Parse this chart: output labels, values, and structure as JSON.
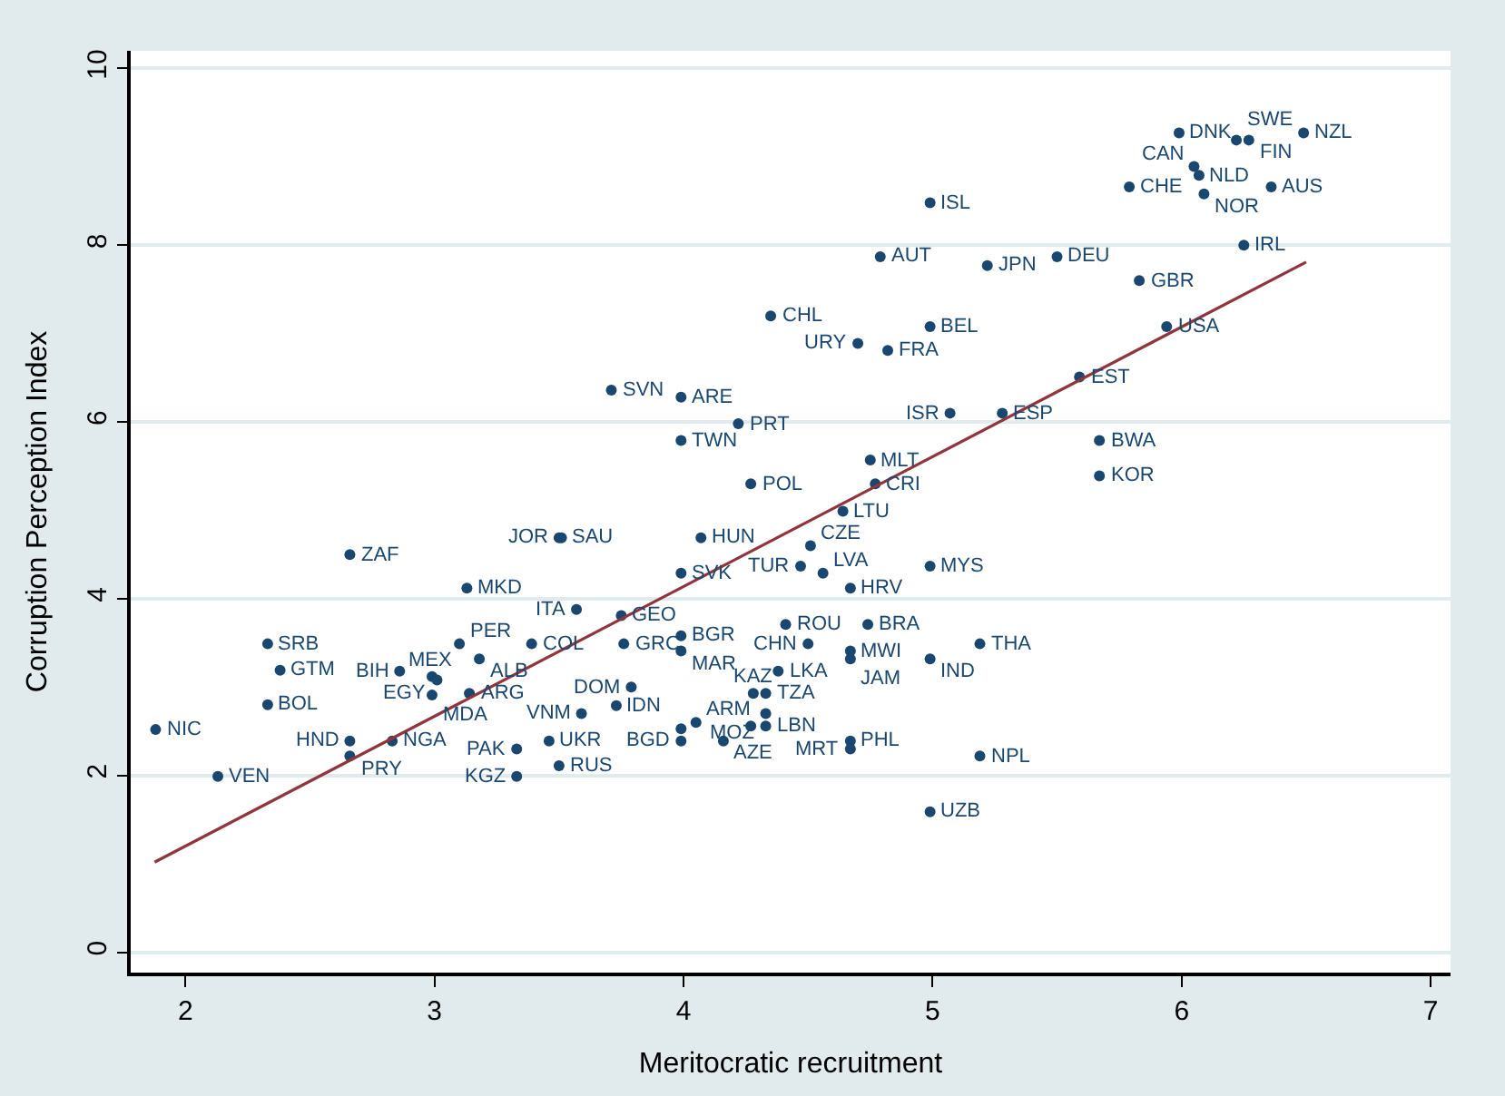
{
  "chart_data": {
    "type": "scatter",
    "xlabel": "Meritocratic recruitment",
    "ylabel": "Corruption Perception Index",
    "xlim": [
      1.78,
      7.08
    ],
    "ylim": [
      -0.23,
      10.2
    ],
    "xticks": [
      2,
      3,
      4,
      5,
      6,
      7
    ],
    "yticks": [
      0,
      2,
      4,
      6,
      8,
      10
    ],
    "grid": "y",
    "marker": "circle",
    "series": [
      {
        "color": "#1a476f",
        "x": [
          1.88,
          2.13,
          2.33,
          2.38,
          2.33,
          2.66,
          2.66,
          2.66,
          2.83,
          2.86,
          2.99,
          3.01,
          2.99,
          3.14,
          3.1,
          3.18,
          3.39,
          3.13,
          3.5,
          3.51,
          3.57,
          3.75,
          3.76,
          3.33,
          3.46,
          3.5,
          3.33,
          3.59,
          3.73,
          3.79,
          3.71,
          3.99,
          3.99,
          4.22,
          4.27,
          4.07,
          3.99,
          3.99,
          3.99,
          4.05,
          3.99,
          3.99,
          4.16,
          4.27,
          4.33,
          4.28,
          4.33,
          4.33,
          4.38,
          4.41,
          4.5,
          4.74,
          4.67,
          4.67,
          4.67,
          4.67,
          4.99,
          5.19,
          5.19,
          4.99,
          4.99,
          4.67,
          4.56,
          4.47,
          4.51,
          4.64,
          4.77,
          4.75,
          4.35,
          4.7,
          4.82,
          4.99,
          4.79,
          4.99,
          5.22,
          5.5,
          5.07,
          5.28,
          5.59,
          5.94,
          5.83,
          6.25,
          5.67,
          5.67,
          5.79,
          5.99,
          6.05,
          6.07,
          6.09,
          6.36,
          6.49,
          6.22,
          6.27
        ],
        "values": [
          2.52,
          1.99,
          3.49,
          3.19,
          2.8,
          4.5,
          2.39,
          2.22,
          2.39,
          3.18,
          3.12,
          3.08,
          2.91,
          2.93,
          3.49,
          3.32,
          3.49,
          4.12,
          4.69,
          4.69,
          3.88,
          3.81,
          3.49,
          2.3,
          2.39,
          2.11,
          1.99,
          2.7,
          2.79,
          3.0,
          6.36,
          6.28,
          5.79,
          5.98,
          5.3,
          4.69,
          4.29,
          3.58,
          3.41,
          2.6,
          2.39,
          2.53,
          2.39,
          2.56,
          2.56,
          2.93,
          2.93,
          2.7,
          3.18,
          3.71,
          3.49,
          3.71,
          3.41,
          3.32,
          2.39,
          2.3,
          3.32,
          3.49,
          2.22,
          1.59,
          4.37,
          4.12,
          4.29,
          4.37,
          4.6,
          4.99,
          5.3,
          5.57,
          7.2,
          6.89,
          6.81,
          7.08,
          7.87,
          8.48,
          7.77,
          7.87,
          6.1,
          6.1,
          6.51,
          7.08,
          7.6,
          8.0,
          5.79,
          5.39,
          8.66,
          9.27,
          8.89,
          8.79,
          8.58,
          8.66,
          9.27,
          9.19,
          9.19
        ],
        "value_labels": [
          "NIC",
          "VEN",
          "SRB",
          "GTM",
          "BOL",
          "ZAF",
          "HND",
          "PRY",
          "NGA",
          "BIH",
          "MEX",
          "EGY",
          "MDA",
          "ARG",
          "PER",
          "ALB",
          "COL",
          "MKD",
          "JOR",
          "SAU",
          "ITA",
          "GEO",
          "GRC",
          "PAK",
          "UKR",
          "RUS",
          "KGZ",
          "VNM",
          "IDN",
          "DOM",
          "SVN",
          "ARE",
          "TWN",
          "PRT",
          "POL",
          "HUN",
          "SVK",
          "BGR",
          "MAR",
          "ARM",
          "BGD",
          null,
          "AZE",
          null,
          "LBN",
          "KAZ",
          "TZA",
          "MOZ",
          "LKA",
          "ROU",
          "CHN",
          "BRA",
          "MWI",
          "JAM",
          "PHL",
          "MRT",
          "IND",
          "THA",
          "NPL",
          "UZB",
          "MYS",
          "HRV",
          "LVA",
          "TUR",
          "CZE",
          "LTU",
          "CRI",
          "MLT",
          "CHL",
          "URY",
          "FRA",
          "BEL",
          "AUT",
          "ISL",
          "JPN",
          "DEU",
          "ISR",
          "ESP",
          "EST",
          "USA",
          "GBR",
          "IRL",
          "BWA",
          "KOR",
          "CHE",
          "DNK",
          "CAN",
          "NLD",
          "NOR",
          "AUS",
          "NZL",
          "SWE",
          "FIN"
        ]
      },
      {
        "type": "line",
        "color": "#90353b",
        "x": [
          1.876,
          6.5
        ],
        "values": [
          1.02,
          7.81
        ],
        "marker": "none"
      }
    ]
  }
}
